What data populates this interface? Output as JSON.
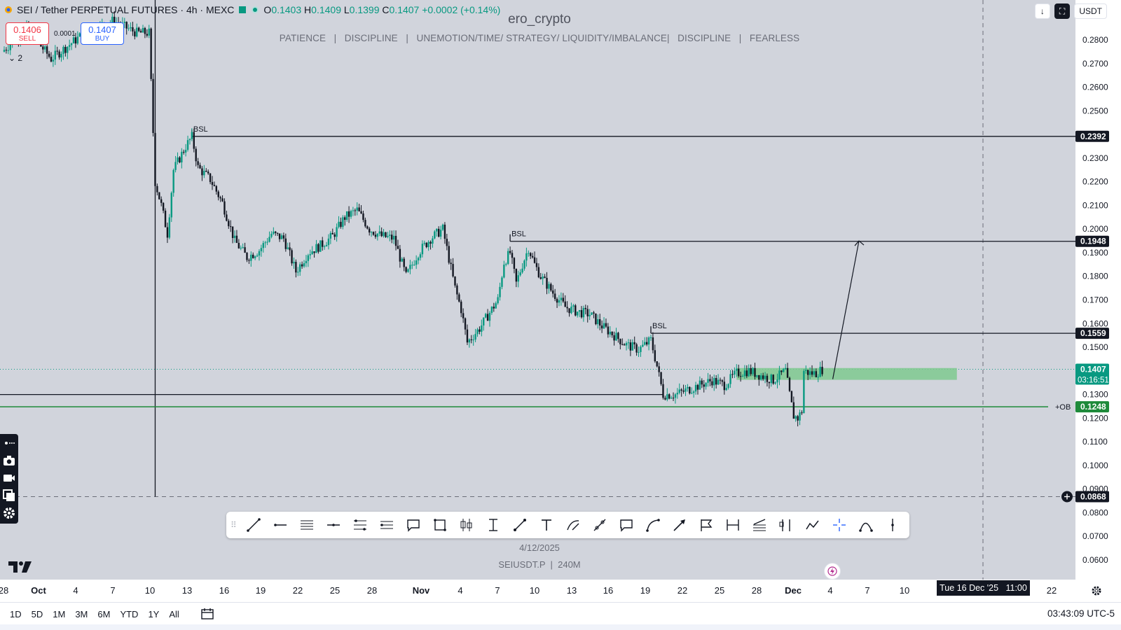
{
  "legend": {
    "symbol": "SEI / Tether PERPETUAL FUTURES · 4h · MEXC",
    "open_label": "O",
    "open": "0.1403",
    "high_label": "H",
    "high": "0.1409",
    "low_label": "L",
    "low": "0.1399",
    "close_label": "C",
    "close": "0.1407",
    "change": "+0.0002 (+0.14%)"
  },
  "trade": {
    "sell_price": "0.1406",
    "sell_label": "SELL",
    "spread": "0.0001",
    "buy_price": "0.1407",
    "buy_label": "BUY"
  },
  "indicator_count": "2",
  "watermark": {
    "title": "ero_crypto",
    "tagline": "PATIENCE   |   DISCIPLINE   |   UNEMOTION/TIME/ STRATEGY/ LIQUIDITY/IMBALANCE|   DISCIPLINE   |   FEARLESS",
    "date": "4/12/2025",
    "symbol_line": "SEIUSDT.P  |  240M"
  },
  "top_right": {
    "currency": "USDT"
  },
  "colors": {
    "background": "#d1d4dc",
    "up": "#089981",
    "down": "#131722",
    "zone": "#7fc98f",
    "ob_line": "#1e8a3a"
  },
  "icons": [
    "camera-icon",
    "video-icon",
    "layers-icon",
    "settings-icon",
    "trend-line-icon",
    "horizontal-ray-icon",
    "parallel-channel-icon",
    "fib-icon",
    "rectangle-icon",
    "text-icon",
    "arrow-icon",
    "brush-icon",
    "measure-icon",
    "crosshair-icon"
  ],
  "time_axis": {
    "labels": [
      "28",
      "Oct",
      "4",
      "7",
      "10",
      "13",
      "16",
      "19",
      "22",
      "25",
      "28",
      "Nov",
      "4",
      "7",
      "10",
      "13",
      "16",
      "19",
      "22",
      "25",
      "28",
      "Dec",
      "4",
      "7",
      "10",
      "22"
    ],
    "crosshair_date": "Tue 16 Dec '25   11:00"
  },
  "bottom_bar": {
    "ranges": [
      "1D",
      "5D",
      "1M",
      "3M",
      "6M",
      "YTD",
      "1Y",
      "All"
    ],
    "clock": "03:43:09 UTC-5"
  },
  "chart_data": {
    "type": "candlestick",
    "symbol": "SEIUSDT.P",
    "interval": "4h",
    "ylim": [
      0.055,
      0.29
    ],
    "y_ticks": [
      "0.2800",
      "0.2700",
      "0.2600",
      "0.2500",
      "0.2400",
      "0.2300",
      "0.2200",
      "0.2100",
      "0.2000",
      "0.1900",
      "0.1800",
      "0.1700",
      "0.1600",
      "0.1500",
      "0.1400",
      "0.1300",
      "0.1200",
      "0.1100",
      "0.1000",
      "0.0900",
      "0.0800",
      "0.0700",
      "0.0600"
    ],
    "price_path": [
      [
        "Sep 28",
        0.275
      ],
      [
        "Sep 30",
        0.285
      ],
      [
        "Oct 2",
        0.272
      ],
      [
        "Oct 5",
        0.284
      ],
      [
        "Oct 7",
        0.288
      ],
      [
        "Oct 9",
        0.283
      ],
      [
        "Oct 10",
        0.283
      ],
      [
        "Oct 10 12:00",
        0.22
      ],
      [
        "Oct 11",
        0.21
      ],
      [
        "Oct 11 12:00",
        0.198
      ],
      [
        "Oct 12",
        0.225
      ],
      [
        "Oct 13",
        0.235
      ],
      [
        "Oct 13 12:00",
        0.239
      ],
      [
        "Oct 14",
        0.226
      ],
      [
        "Oct 15",
        0.221
      ],
      [
        "Oct 16",
        0.211
      ],
      [
        "Oct 17",
        0.195
      ],
      [
        "Oct 18",
        0.188
      ],
      [
        "Oct 19",
        0.191
      ],
      [
        "Oct 20",
        0.198
      ],
      [
        "Oct 21",
        0.196
      ],
      [
        "Oct 22",
        0.182
      ],
      [
        "Oct 23",
        0.19
      ],
      [
        "Oct 24",
        0.193
      ],
      [
        "Oct 25",
        0.197
      ],
      [
        "Oct 26",
        0.205
      ],
      [
        "Oct 27",
        0.208
      ],
      [
        "Oct 28",
        0.2
      ],
      [
        "Oct 29",
        0.197
      ],
      [
        "Oct 30",
        0.196
      ],
      [
        "Oct 31",
        0.18
      ],
      [
        "Nov 1",
        0.19
      ],
      [
        "Nov 2",
        0.196
      ],
      [
        "Nov 3",
        0.2
      ],
      [
        "Nov 4",
        0.175
      ],
      [
        "Nov 4 12:00",
        0.166
      ],
      [
        "Nov 5",
        0.152
      ],
      [
        "Nov 6",
        0.158
      ],
      [
        "Nov 7",
        0.166
      ],
      [
        "Nov 7 12:00",
        0.17
      ],
      [
        "Nov 8",
        0.186
      ],
      [
        "Nov 8 12:00",
        0.19
      ],
      [
        "Nov 9",
        0.177
      ],
      [
        "Nov 9 12:00",
        0.185
      ],
      [
        "Nov 10",
        0.192
      ],
      [
        "Nov 10 12:00",
        0.185
      ],
      [
        "Nov 11",
        0.18
      ],
      [
        "Nov 12",
        0.173
      ],
      [
        "Nov 13",
        0.167
      ],
      [
        "Nov 14",
        0.165
      ],
      [
        "Nov 15",
        0.164
      ],
      [
        "Nov 16",
        0.159
      ],
      [
        "Nov 17",
        0.155
      ],
      [
        "Nov 18",
        0.151
      ],
      [
        "Nov 19",
        0.149
      ],
      [
        "Nov 20",
        0.153
      ],
      [
        "Nov 20 12:00",
        0.142
      ],
      [
        "Nov 21",
        0.13
      ],
      [
        "Nov 22",
        0.13
      ],
      [
        "Nov 23",
        0.132
      ],
      [
        "Nov 24",
        0.134
      ],
      [
        "Nov 25",
        0.136
      ],
      [
        "Nov 26",
        0.134
      ],
      [
        "Nov 27",
        0.139
      ],
      [
        "Nov 28",
        0.14
      ],
      [
        "Nov 29",
        0.138
      ],
      [
        "Nov 30",
        0.136
      ],
      [
        "Dec 1",
        0.14
      ],
      [
        "Dec 1 08:00",
        0.13
      ],
      [
        "Dec 1 16:00",
        0.121
      ],
      [
        "Dec 2",
        0.12
      ],
      [
        "Dec 2 08:00",
        0.123
      ],
      [
        "Dec 2 12:00",
        0.14
      ],
      [
        "Dec 3",
        0.139
      ],
      [
        "Dec 3 12:00",
        0.139
      ],
      [
        "Dec 4",
        0.1407
      ]
    ],
    "levels": [
      {
        "label": "BSL",
        "price": 0.2392
      },
      {
        "label": "BSL",
        "price": 0.1948
      },
      {
        "label": "BSL",
        "price": 0.1559
      },
      {
        "label": "+OB",
        "price": 0.1248
      },
      {
        "label": "",
        "price": 0.0868
      }
    ],
    "support_line": 0.13,
    "current_price": 0.1407,
    "countdown": "03:16:51",
    "demand_zone": [
      0.1362,
      0.1412
    ],
    "projection": {
      "from": 0.1365,
      "to": 0.195
    },
    "annotations": [
      "BSL",
      "BSL",
      "BSL",
      "+OB"
    ]
  }
}
